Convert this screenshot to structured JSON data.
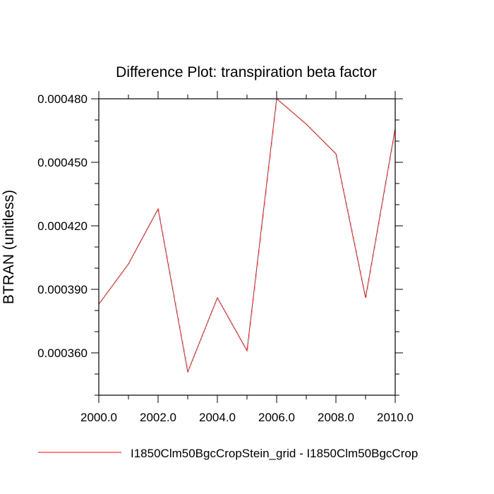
{
  "chart_data": {
    "type": "line",
    "title": "Difference Plot: transpiration beta factor",
    "xlabel": "",
    "ylabel": "BTRAN  (unitless)",
    "xlim": [
      2000,
      2010
    ],
    "ylim": [
      0.00034,
      0.00048
    ],
    "x_ticks": [
      2000,
      2002,
      2004,
      2006,
      2008,
      2010
    ],
    "x_tick_labels": [
      "2000.0",
      "2002.0",
      "2004.0",
      "2006.0",
      "2008.0",
      "2010.0"
    ],
    "y_ticks": [
      0.00036,
      0.00039,
      0.00042,
      0.00045,
      0.00048
    ],
    "y_tick_labels": [
      "0.000360",
      "0.000390",
      "0.000420",
      "0.000450",
      "0.000480"
    ],
    "grid": false,
    "legend_position": "bottom",
    "series": [
      {
        "name": "I1850Clm50BgcCropStein_grid - I1850Clm50BgcCrop",
        "color": "#ff0000",
        "x": [
          2000,
          2001,
          2002,
          2003,
          2004,
          2005,
          2006,
          2007,
          2008,
          2009,
          2010
        ],
        "y": [
          0.000383,
          0.000402,
          0.000428,
          0.000351,
          0.000386,
          0.000361,
          0.00048,
          0.000468,
          0.000454,
          0.000386,
          0.000466
        ]
      }
    ]
  }
}
